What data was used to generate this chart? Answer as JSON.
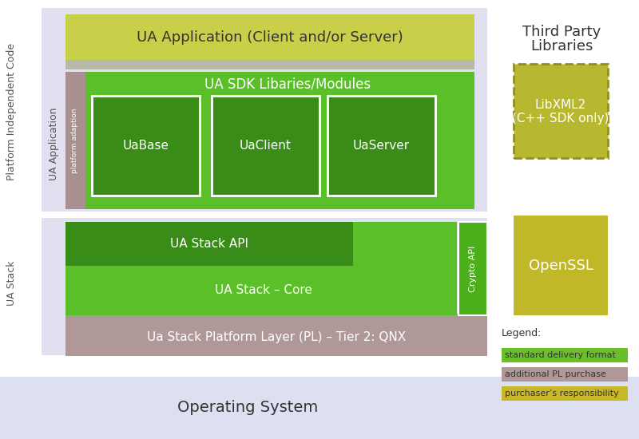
{
  "bg_color": "#ffffff",
  "lavender_bg": "#e0e0f0",
  "os_bg": "#dde0f0",
  "green_sdk": "#5abf28",
  "green_dark_module": "#3a8c18",
  "green_stack": "#5abf28",
  "green_api": "#4aaf18",
  "yellow_app": "#c8cf48",
  "pink_platform": "#b09898",
  "pink_adaption": "#a89090",
  "olive_libxml": "#b8b830",
  "olive_openssl": "#c0b828",
  "legend_green": "#6abf28",
  "legend_pink": "#b09898",
  "legend_olive": "#c8b828",
  "title": "UA Application (Client and/or Server)",
  "sdk_title": "UA SDK Libaries/Modules",
  "modules": [
    "UaBase",
    "UaClient",
    "UaServer"
  ],
  "stack_api": "UA Stack API",
  "stack_core": "UA Stack – Core",
  "crypto_api": "Crypto API",
  "platform_layer": "Ua Stack Platform Layer (PL) – Tier 2: QNX",
  "os_label": "Operating System",
  "third_party_line1": "Third Party",
  "third_party_line2": "Libraries",
  "libxml2_label": "LibXML2\n(C++ SDK only)",
  "openssl_label": "OpenSSL",
  "platform_independent_label": "Platform Independent Code",
  "ua_application_label": "UA Application",
  "ua_stack_label": "UA Stack",
  "platform_adaption_label": "platform adaption",
  "legend_title": "Legend:",
  "legend_items": [
    "standard delivery format",
    "additional PL purchase",
    "purchaser’s responsibility"
  ],
  "separator_color": "#c8c8d8",
  "text_dark": "#333333",
  "text_mid": "#555555"
}
